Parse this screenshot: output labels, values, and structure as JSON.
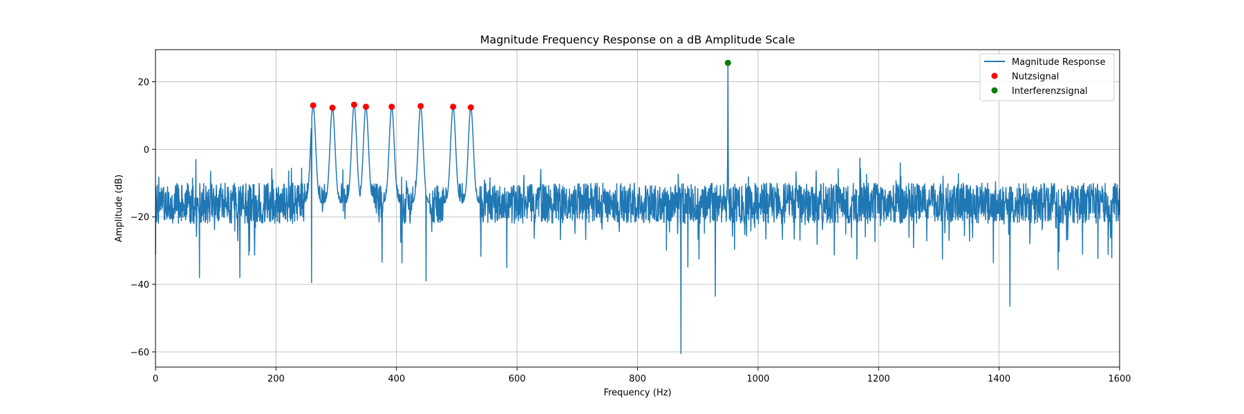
{
  "chart_data": {
    "type": "line",
    "title": "Magnitude Frequency Response on a dB Amplitude Scale",
    "xlabel": "Frequency (Hz)",
    "ylabel": "Amplitude (dB)",
    "xlim": [
      0,
      1600
    ],
    "ylim": [
      -64.5,
      29.5
    ],
    "xticks": [
      0,
      200,
      400,
      600,
      800,
      1000,
      1200,
      1400,
      1600
    ],
    "yticks": [
      -60,
      -40,
      -20,
      0,
      20
    ],
    "grid": true,
    "legend_position": "top-right",
    "series": [
      {
        "name": "Magnitude Response",
        "kind": "line",
        "color": "#1f77b4",
        "noise_floor_db": -16,
        "peaks": [
          {
            "x": 261.6,
            "y": 13.0
          },
          {
            "x": 293.7,
            "y": 12.3
          },
          {
            "x": 329.6,
            "y": 13.2
          },
          {
            "x": 349.2,
            "y": 12.6
          },
          {
            "x": 392.0,
            "y": 12.6
          },
          {
            "x": 440.0,
            "y": 12.8
          },
          {
            "x": 493.9,
            "y": 12.6
          },
          {
            "x": 523.3,
            "y": 12.4
          },
          {
            "x": 950.0,
            "y": 25.6
          }
        ],
        "notable_dips": [
          {
            "x": 73,
            "y": -38
          },
          {
            "x": 140,
            "y": -38
          },
          {
            "x": 259,
            "y": -39.5
          },
          {
            "x": 449,
            "y": -39
          },
          {
            "x": 872,
            "y": -60.5
          },
          {
            "x": 929,
            "y": -43.5
          },
          {
            "x": 1418,
            "y": -46.5
          }
        ]
      },
      {
        "name": "Nutzsignal",
        "kind": "scatter",
        "color": "#ff0000",
        "x": [
          261.6,
          293.7,
          329.6,
          349.2,
          392.0,
          440.0,
          493.9,
          523.3
        ],
        "y": [
          13.0,
          12.3,
          13.2,
          12.6,
          12.6,
          12.8,
          12.6,
          12.4
        ]
      },
      {
        "name": "Interferenzsignal",
        "kind": "scatter",
        "color": "#008000",
        "x": [
          950.0
        ],
        "y": [
          25.6
        ]
      }
    ]
  }
}
